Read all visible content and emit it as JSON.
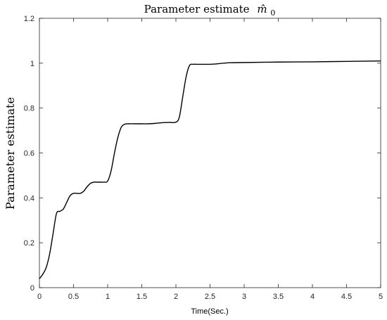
{
  "chart_data": {
    "type": "line",
    "title": "Parameter estimate",
    "title_math": "m̂",
    "title_subscript": "0",
    "xlabel": "Time(Sec.)",
    "ylabel": "Parameter estimate",
    "xlim": [
      0,
      5
    ],
    "ylim": [
      0,
      1.2
    ],
    "grid": false,
    "x_ticks": [
      0,
      0.5,
      1,
      1.5,
      2,
      2.5,
      3,
      3.5,
      4,
      4.5,
      5
    ],
    "x_tick_labels": [
      "0",
      "0.5",
      "1",
      "1.5",
      "2",
      "2.5",
      "3",
      "3.5",
      "4",
      "4.5",
      "5"
    ],
    "y_ticks": [
      0,
      0.2,
      0.4,
      0.6,
      0.8,
      1,
      1.2
    ],
    "y_tick_labels": [
      "0",
      "0.2",
      "0.4",
      "0.6",
      "0.8",
      "1",
      "1.2"
    ],
    "series": [
      {
        "color": "#000000",
        "x": [
          0,
          0.05,
          0.1,
          0.15,
          0.2,
          0.25,
          0.3,
          0.35,
          0.4,
          0.45,
          0.5,
          0.55,
          0.6,
          0.65,
          0.7,
          0.75,
          0.8,
          0.85,
          0.9,
          0.95,
          1.0,
          1.05,
          1.1,
          1.15,
          1.2,
          1.25,
          1.3,
          1.4,
          1.5,
          1.6,
          1.7,
          1.8,
          1.9,
          2.0,
          2.05,
          2.1,
          2.15,
          2.2,
          2.25,
          2.3,
          2.4,
          2.5,
          2.6,
          2.7,
          2.8,
          3.0,
          3.5,
          4.0,
          4.5,
          5.0
        ],
        "y": [
          0.04,
          0.06,
          0.09,
          0.15,
          0.24,
          0.33,
          0.34,
          0.35,
          0.38,
          0.41,
          0.42,
          0.42,
          0.42,
          0.43,
          0.45,
          0.465,
          0.47,
          0.47,
          0.47,
          0.47,
          0.475,
          0.52,
          0.6,
          0.67,
          0.715,
          0.728,
          0.73,
          0.73,
          0.73,
          0.73,
          0.732,
          0.735,
          0.736,
          0.737,
          0.76,
          0.85,
          0.94,
          0.99,
          0.995,
          0.995,
          0.995,
          0.995,
          0.997,
          1.0,
          1.002,
          1.003,
          1.005,
          1.006,
          1.008,
          1.01
        ]
      }
    ]
  }
}
